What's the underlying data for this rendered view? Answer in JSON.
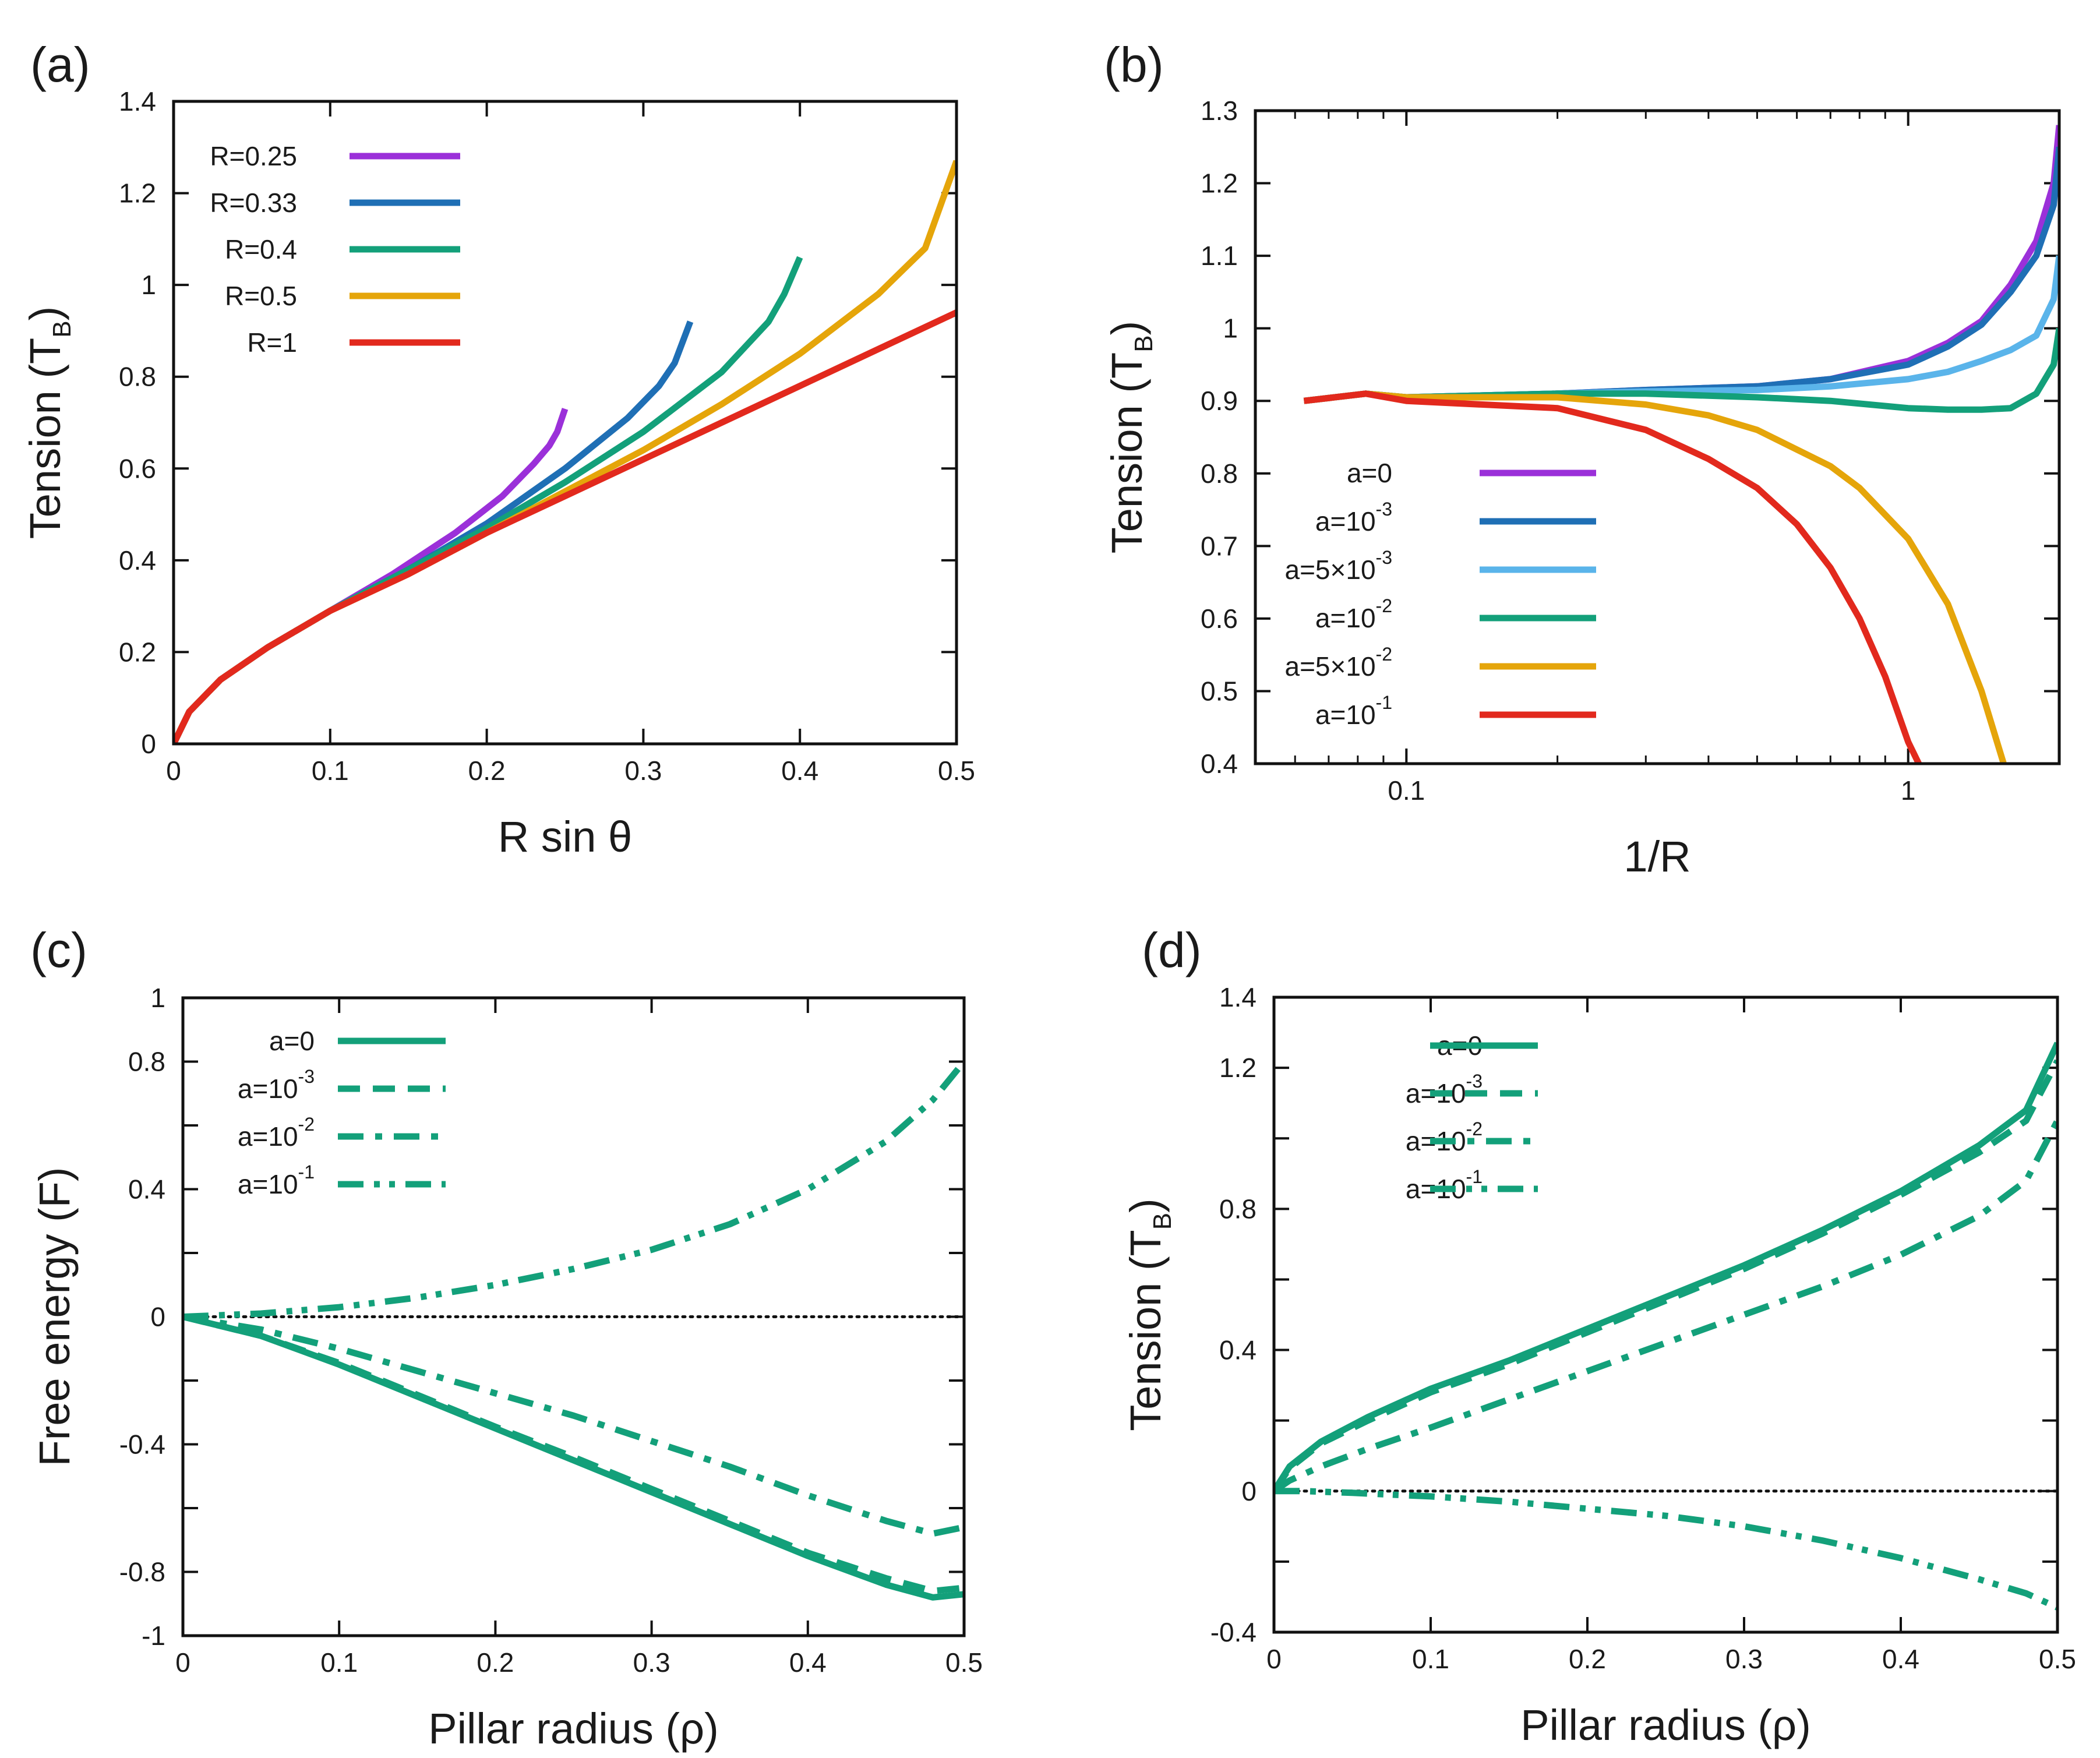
{
  "chart_data": [
    {
      "panel": "(a)",
      "type": "line",
      "xlabel": "R sin θ",
      "ylabel_main": "Tension (T",
      "ylabel_sub": "B",
      "ylabel_close": ")",
      "xscale": "linear",
      "xlim": [
        0,
        0.5
      ],
      "ylim": [
        0,
        1.4
      ],
      "xticks": [
        0,
        0.1,
        0.2,
        0.3,
        0.4,
        0.5
      ],
      "xtick_labels": [
        "0",
        "0.1",
        "0.2",
        "0.3",
        "0.4",
        "0.5"
      ],
      "yticks": [
        0,
        0.2,
        0.4,
        0.6,
        0.8,
        1.0,
        1.2,
        1.4
      ],
      "ytick_labels": [
        "0",
        "0.2",
        "0.4",
        "0.6",
        "0.8",
        "1",
        "1.2",
        "1.4"
      ],
      "legend_position": "top-left",
      "series": [
        {
          "name": "R=0.25",
          "label_main": "R=0.25",
          "color": "#9b30d9",
          "dash": "solid",
          "x": [
            0.0,
            0.01,
            0.03,
            0.06,
            0.1,
            0.14,
            0.18,
            0.21,
            0.23,
            0.24,
            0.245,
            0.25
          ],
          "y": [
            0.0,
            0.07,
            0.14,
            0.21,
            0.29,
            0.37,
            0.46,
            0.54,
            0.61,
            0.65,
            0.68,
            0.73
          ]
        },
        {
          "name": "R=0.33",
          "label_main": "R=0.33",
          "color": "#1f6fb5",
          "dash": "solid",
          "x": [
            0.0,
            0.01,
            0.03,
            0.06,
            0.1,
            0.15,
            0.2,
            0.25,
            0.29,
            0.31,
            0.32,
            0.33
          ],
          "y": [
            0.0,
            0.07,
            0.14,
            0.21,
            0.29,
            0.38,
            0.48,
            0.6,
            0.71,
            0.78,
            0.83,
            0.92
          ]
        },
        {
          "name": "R=0.4",
          "label_main": "R=0.4",
          "color": "#13a07a",
          "dash": "solid",
          "x": [
            0.0,
            0.01,
            0.03,
            0.06,
            0.1,
            0.15,
            0.2,
            0.25,
            0.3,
            0.35,
            0.38,
            0.39,
            0.4
          ],
          "y": [
            0.0,
            0.07,
            0.14,
            0.21,
            0.29,
            0.38,
            0.47,
            0.57,
            0.68,
            0.81,
            0.92,
            0.98,
            1.06
          ]
        },
        {
          "name": "R=0.5",
          "label_main": "R=0.5",
          "color": "#e5a50a",
          "dash": "solid",
          "x": [
            0.0,
            0.01,
            0.03,
            0.06,
            0.1,
            0.15,
            0.2,
            0.25,
            0.3,
            0.35,
            0.4,
            0.45,
            0.48,
            0.5
          ],
          "y": [
            0.0,
            0.07,
            0.14,
            0.21,
            0.29,
            0.37,
            0.46,
            0.55,
            0.64,
            0.74,
            0.85,
            0.98,
            1.08,
            1.27
          ]
        },
        {
          "name": "R=1",
          "label_main": "R=1",
          "color": "#e2291d",
          "dash": "solid",
          "x": [
            0.0,
            0.01,
            0.03,
            0.06,
            0.1,
            0.15,
            0.2,
            0.25,
            0.3,
            0.35,
            0.4,
            0.45,
            0.5
          ],
          "y": [
            0.0,
            0.07,
            0.14,
            0.21,
            0.29,
            0.37,
            0.46,
            0.54,
            0.62,
            0.7,
            0.78,
            0.86,
            0.94
          ]
        }
      ]
    },
    {
      "panel": "(b)",
      "type": "line",
      "xlabel": "1/R",
      "ylabel_main": "Tension (T",
      "ylabel_sub": "B",
      "ylabel_close": ")",
      "xscale": "log",
      "xlim": [
        0.05,
        2.0
      ],
      "ylim": [
        0.4,
        1.3
      ],
      "xticks": [
        0.1,
        1
      ],
      "xtick_labels": [
        "0.1",
        "1"
      ],
      "minor_xticks": [
        0.06,
        0.07,
        0.08,
        0.09,
        0.2,
        0.3,
        0.4,
        0.5,
        0.6,
        0.7,
        0.8,
        0.9,
        2.0
      ],
      "yticks": [
        0.4,
        0.5,
        0.6,
        0.7,
        0.8,
        0.9,
        1.0,
        1.1,
        1.2,
        1.3
      ],
      "ytick_labels": [
        "0.4",
        "0.5",
        "0.6",
        "0.7",
        "0.8",
        "0.9",
        "1",
        "1.1",
        "1.2",
        "1.3"
      ],
      "legend_position": "bottom-left",
      "series": [
        {
          "name": "a=0",
          "label_main": "a=0",
          "color": "#9b30d9",
          "dash": "solid",
          "x": [
            0.0625,
            0.083,
            0.1,
            0.2,
            0.3,
            0.5,
            0.7,
            1.0,
            1.2,
            1.4,
            1.6,
            1.8,
            1.95,
            2.0
          ],
          "y": [
            0.9,
            0.91,
            0.905,
            0.91,
            0.915,
            0.92,
            0.93,
            0.955,
            0.98,
            1.01,
            1.06,
            1.12,
            1.2,
            1.28
          ]
        },
        {
          "name": "a=10-3",
          "label_main": "a=10",
          "label_sup": "-3",
          "color": "#1f6fb5",
          "dash": "solid",
          "x": [
            0.0625,
            0.083,
            0.1,
            0.2,
            0.3,
            0.5,
            0.7,
            1.0,
            1.2,
            1.4,
            1.6,
            1.8,
            1.95,
            2.0
          ],
          "y": [
            0.9,
            0.91,
            0.905,
            0.91,
            0.915,
            0.92,
            0.93,
            0.95,
            0.975,
            1.005,
            1.05,
            1.1,
            1.17,
            1.25
          ]
        },
        {
          "name": "a=5×10-3",
          "label_main": "a=5×10",
          "label_sup": "-3",
          "color": "#5ab4ea",
          "dash": "solid",
          "x": [
            0.0625,
            0.083,
            0.1,
            0.2,
            0.3,
            0.5,
            0.7,
            1.0,
            1.2,
            1.4,
            1.6,
            1.8,
            1.95,
            2.0
          ],
          "y": [
            0.9,
            0.91,
            0.905,
            0.91,
            0.913,
            0.915,
            0.92,
            0.93,
            0.94,
            0.955,
            0.97,
            0.99,
            1.04,
            1.1
          ]
        },
        {
          "name": "a=10-2",
          "label_main": "a=10",
          "label_sup": "-2",
          "color": "#13a07a",
          "dash": "solid",
          "x": [
            0.0625,
            0.083,
            0.1,
            0.2,
            0.3,
            0.5,
            0.7,
            1.0,
            1.2,
            1.4,
            1.6,
            1.8,
            1.95,
            2.0
          ],
          "y": [
            0.9,
            0.91,
            0.905,
            0.91,
            0.91,
            0.905,
            0.9,
            0.89,
            0.888,
            0.888,
            0.89,
            0.91,
            0.95,
            1.0
          ]
        },
        {
          "name": "a=5×10-2",
          "label_main": "a=5×10",
          "label_sup": "-2",
          "color": "#e5a50a",
          "dash": "solid",
          "x": [
            0.0625,
            0.083,
            0.1,
            0.2,
            0.3,
            0.4,
            0.5,
            0.7,
            0.8,
            1.0,
            1.2,
            1.4,
            1.55
          ],
          "y": [
            0.9,
            0.91,
            0.905,
            0.905,
            0.895,
            0.88,
            0.86,
            0.81,
            0.78,
            0.71,
            0.62,
            0.5,
            0.4
          ]
        },
        {
          "name": "a=10-1",
          "label_main": "a=10",
          "label_sup": "-1",
          "color": "#e2291d",
          "dash": "solid",
          "x": [
            0.0625,
            0.083,
            0.1,
            0.2,
            0.3,
            0.4,
            0.5,
            0.6,
            0.7,
            0.8,
            0.9,
            1.0,
            1.05
          ],
          "y": [
            0.9,
            0.91,
            0.9,
            0.89,
            0.86,
            0.82,
            0.78,
            0.73,
            0.67,
            0.6,
            0.52,
            0.43,
            0.4
          ]
        }
      ]
    },
    {
      "panel": "(c)",
      "type": "line",
      "xlabel": "Pillar radius (ρ)",
      "ylabel_main": "Free energy (F)",
      "xscale": "linear",
      "xlim": [
        0,
        0.5
      ],
      "ylim": [
        -1,
        1
      ],
      "xticks": [
        0,
        0.1,
        0.2,
        0.3,
        0.4,
        0.5
      ],
      "xtick_labels": [
        "0",
        "0.1",
        "0.2",
        "0.3",
        "0.4",
        "0.5"
      ],
      "yticks": [
        -1,
        -0.8,
        -0.4,
        0,
        0.4,
        0.8,
        1
      ],
      "ytick_labels": [
        "-1",
        "-0.8",
        "-0.4",
        "0",
        "0.4",
        "0.8",
        "1"
      ],
      "minor_yticks": [
        -0.6,
        -0.2,
        0.2,
        0.6
      ],
      "zero_line": true,
      "legend_position": "top-left",
      "series": [
        {
          "name": "a=0",
          "label_main": "a=0",
          "color": "#13a07a",
          "dash": "solid",
          "x": [
            0.0,
            0.05,
            0.1,
            0.15,
            0.2,
            0.25,
            0.3,
            0.35,
            0.4,
            0.45,
            0.48,
            0.5
          ],
          "y": [
            0.0,
            -0.06,
            -0.15,
            -0.25,
            -0.35,
            -0.45,
            -0.55,
            -0.65,
            -0.75,
            -0.84,
            -0.88,
            -0.87
          ]
        },
        {
          "name": "a=10-3",
          "label_main": "a=10",
          "label_sup": "-3",
          "color": "#13a07a",
          "dash": "dashed",
          "x": [
            0.0,
            0.05,
            0.1,
            0.15,
            0.2,
            0.25,
            0.3,
            0.35,
            0.4,
            0.45,
            0.48,
            0.5
          ],
          "y": [
            0.0,
            -0.06,
            -0.145,
            -0.245,
            -0.345,
            -0.44,
            -0.54,
            -0.64,
            -0.74,
            -0.82,
            -0.86,
            -0.85
          ]
        },
        {
          "name": "a=10-2",
          "label_main": "a=10",
          "label_sup": "-2",
          "color": "#13a07a",
          "dash": "dashdot",
          "x": [
            0.0,
            0.05,
            0.1,
            0.15,
            0.2,
            0.25,
            0.3,
            0.35,
            0.4,
            0.45,
            0.48,
            0.5
          ],
          "y": [
            0.0,
            -0.04,
            -0.1,
            -0.17,
            -0.24,
            -0.31,
            -0.39,
            -0.47,
            -0.56,
            -0.64,
            -0.68,
            -0.66
          ]
        },
        {
          "name": "a=10-1",
          "label_main": "a=10",
          "label_sup": "-1",
          "color": "#13a07a",
          "dash": "dashdotdot",
          "x": [
            0.0,
            0.05,
            0.1,
            0.15,
            0.2,
            0.25,
            0.3,
            0.35,
            0.4,
            0.45,
            0.48,
            0.5
          ],
          "y": [
            0.0,
            0.01,
            0.03,
            0.06,
            0.1,
            0.15,
            0.21,
            0.29,
            0.4,
            0.55,
            0.68,
            0.8
          ]
        }
      ]
    },
    {
      "panel": "(d)",
      "type": "line",
      "xlabel": "Pillar radius (ρ)",
      "ylabel_main": "Tension (T",
      "ylabel_sub": "B",
      "ylabel_close": ")",
      "xscale": "linear",
      "xlim": [
        0,
        0.5
      ],
      "ylim": [
        -0.4,
        1.4
      ],
      "xticks": [
        0,
        0.1,
        0.2,
        0.3,
        0.4,
        0.5
      ],
      "xtick_labels": [
        "0",
        "0.1",
        "0.2",
        "0.3",
        "0.4",
        "0.5"
      ],
      "yticks": [
        -0.4,
        0,
        0.4,
        0.8,
        1.2,
        1.4
      ],
      "ytick_labels": [
        "-0.4",
        "0",
        "0.4",
        "0.8",
        "1.2",
        "1.4"
      ],
      "minor_yticks": [
        -0.2,
        0.2,
        0.6,
        1.0
      ],
      "zero_line": true,
      "legend_position": "top-left",
      "series": [
        {
          "name": "a=0",
          "label_main": "a=0",
          "color": "#13a07a",
          "dash": "solid",
          "x": [
            0.0,
            0.01,
            0.03,
            0.06,
            0.1,
            0.15,
            0.2,
            0.25,
            0.3,
            0.35,
            0.4,
            0.45,
            0.48,
            0.5
          ],
          "y": [
            0.0,
            0.07,
            0.14,
            0.21,
            0.29,
            0.37,
            0.46,
            0.55,
            0.64,
            0.74,
            0.85,
            0.98,
            1.08,
            1.27
          ]
        },
        {
          "name": "a=10-3",
          "label_main": "a=10",
          "label_sup": "-3",
          "color": "#13a07a",
          "dash": "dashed",
          "x": [
            0.0,
            0.01,
            0.03,
            0.06,
            0.1,
            0.15,
            0.2,
            0.25,
            0.3,
            0.35,
            0.4,
            0.45,
            0.48,
            0.5
          ],
          "y": [
            0.0,
            0.065,
            0.135,
            0.2,
            0.28,
            0.36,
            0.45,
            0.54,
            0.63,
            0.73,
            0.84,
            0.96,
            1.05,
            1.22
          ]
        },
        {
          "name": "a=10-2",
          "label_main": "a=10",
          "label_sup": "-2",
          "color": "#13a07a",
          "dash": "dashdot",
          "x": [
            0.0,
            0.01,
            0.03,
            0.06,
            0.1,
            0.15,
            0.2,
            0.25,
            0.3,
            0.35,
            0.4,
            0.45,
            0.48,
            0.5
          ],
          "y": [
            0.0,
            0.03,
            0.07,
            0.12,
            0.18,
            0.26,
            0.34,
            0.42,
            0.5,
            0.58,
            0.67,
            0.78,
            0.88,
            1.05
          ]
        },
        {
          "name": "a=10-1",
          "label_main": "a=10",
          "label_sup": "-1",
          "color": "#13a07a",
          "dash": "dashdotdot",
          "x": [
            0.0,
            0.02,
            0.05,
            0.1,
            0.15,
            0.2,
            0.25,
            0.3,
            0.35,
            0.4,
            0.45,
            0.48,
            0.5
          ],
          "y": [
            0.0,
            0.0,
            -0.005,
            -0.015,
            -0.03,
            -0.05,
            -0.07,
            -0.1,
            -0.14,
            -0.19,
            -0.25,
            -0.29,
            -0.33
          ]
        }
      ]
    }
  ]
}
